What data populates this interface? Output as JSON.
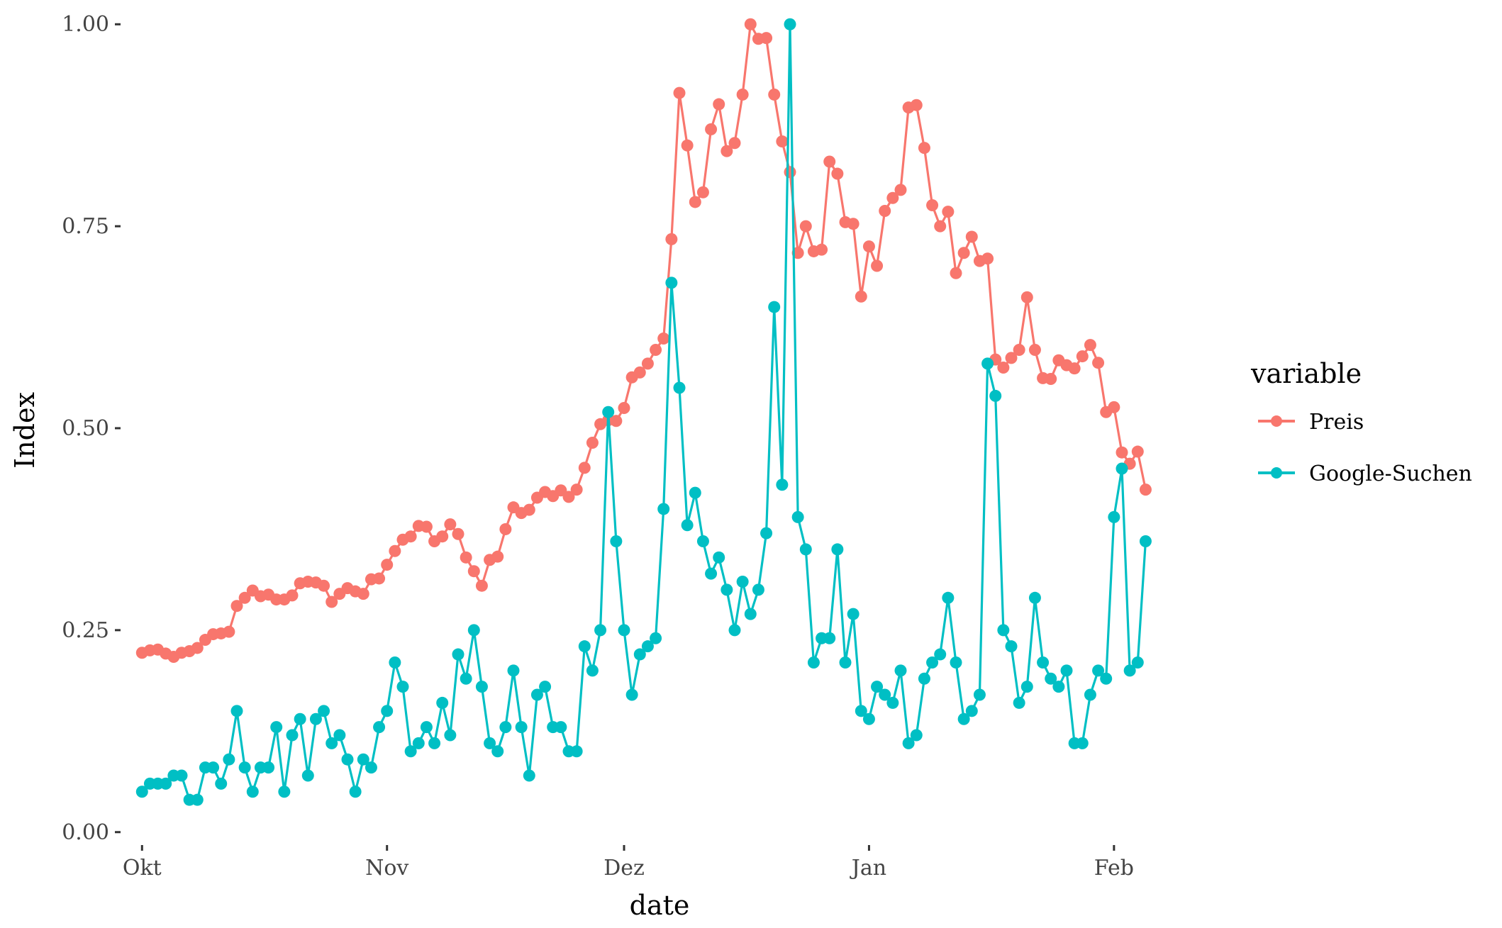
{
  "chart_data": {
    "type": "line",
    "title": "",
    "xlabel": "date",
    "ylabel": "Index",
    "x_axis": {
      "type": "date",
      "domain": [
        "2017-09-29",
        "2018-02-09"
      ],
      "ticks": [
        {
          "date": "2017-10-01",
          "label": "Okt"
        },
        {
          "date": "2017-11-01",
          "label": "Nov"
        },
        {
          "date": "2017-12-01",
          "label": "Dez"
        },
        {
          "date": "2018-01-01",
          "label": "Jan"
        },
        {
          "date": "2018-02-01",
          "label": "Feb"
        }
      ]
    },
    "y_axis": {
      "domain": [
        -0.0125,
        1.0125
      ],
      "ticks": [
        {
          "value": 0.0,
          "label": "0.00"
        },
        {
          "value": 0.25,
          "label": "0.25"
        },
        {
          "value": 0.5,
          "label": "0.50"
        },
        {
          "value": 0.75,
          "label": "0.75"
        },
        {
          "value": 1.0,
          "label": "1.00"
        }
      ]
    },
    "grid": false,
    "legend": {
      "title": "variable",
      "position": "right"
    },
    "x_start": "2017-10-01",
    "x_step_days": 1,
    "series": [
      {
        "name": "Preis",
        "color": "#F8766D",
        "values": [
          0.222,
          0.225,
          0.226,
          0.221,
          0.217,
          0.222,
          0.224,
          0.228,
          0.238,
          0.245,
          0.246,
          0.248,
          0.28,
          0.29,
          0.299,
          0.292,
          0.294,
          0.288,
          0.288,
          0.293,
          0.308,
          0.31,
          0.309,
          0.305,
          0.285,
          0.295,
          0.302,
          0.298,
          0.295,
          0.313,
          0.314,
          0.331,
          0.348,
          0.362,
          0.366,
          0.379,
          0.378,
          0.36,
          0.366,
          0.381,
          0.369,
          0.34,
          0.323,
          0.305,
          0.337,
          0.341,
          0.375,
          0.402,
          0.395,
          0.399,
          0.414,
          0.421,
          0.416,
          0.423,
          0.415,
          0.424,
          0.451,
          0.482,
          0.505,
          0.51,
          0.509,
          0.525,
          0.563,
          0.569,
          0.58,
          0.597,
          0.611,
          0.734,
          0.915,
          0.85,
          0.78,
          0.792,
          0.87,
          0.901,
          0.843,
          0.853,
          0.913,
          1.0,
          0.982,
          0.983,
          0.913,
          0.855,
          0.817,
          0.717,
          0.75,
          0.719,
          0.721,
          0.83,
          0.815,
          0.755,
          0.753,
          0.663,
          0.725,
          0.701,
          0.769,
          0.785,
          0.795,
          0.897,
          0.9,
          0.847,
          0.776,
          0.75,
          0.768,
          0.692,
          0.717,
          0.737,
          0.707,
          0.71,
          0.585,
          0.575,
          0.587,
          0.597,
          0.662,
          0.597,
          0.562,
          0.561,
          0.584,
          0.578,
          0.574,
          0.589,
          0.603,
          0.581,
          0.52,
          0.526,
          0.47,
          0.456,
          0.471,
          0.424
        ]
      },
      {
        "name": "Google-Suchen",
        "color": "#00BFC4",
        "values": [
          0.05,
          0.06,
          0.06,
          0.06,
          0.07,
          0.07,
          0.04,
          0.04,
          0.08,
          0.08,
          0.06,
          0.09,
          0.15,
          0.08,
          0.05,
          0.08,
          0.08,
          0.13,
          0.05,
          0.12,
          0.14,
          0.07,
          0.14,
          0.15,
          0.11,
          0.12,
          0.09,
          0.05,
          0.09,
          0.08,
          0.13,
          0.15,
          0.21,
          0.18,
          0.1,
          0.11,
          0.13,
          0.11,
          0.16,
          0.12,
          0.22,
          0.19,
          0.25,
          0.18,
          0.11,
          0.1,
          0.13,
          0.2,
          0.13,
          0.07,
          0.17,
          0.18,
          0.13,
          0.13,
          0.1,
          0.1,
          0.23,
          0.2,
          0.25,
          0.52,
          0.36,
          0.25,
          0.17,
          0.22,
          0.23,
          0.24,
          0.4,
          0.68,
          0.55,
          0.38,
          0.42,
          0.36,
          0.32,
          0.34,
          0.3,
          0.25,
          0.31,
          0.27,
          0.3,
          0.37,
          0.65,
          0.43,
          1.0,
          0.39,
          0.35,
          0.21,
          0.24,
          0.24,
          0.35,
          0.21,
          0.27,
          0.15,
          0.14,
          0.18,
          0.17,
          0.16,
          0.2,
          0.11,
          0.12,
          0.19,
          0.21,
          0.22,
          0.29,
          0.21,
          0.14,
          0.15,
          0.17,
          0.58,
          0.54,
          0.25,
          0.23,
          0.16,
          0.18,
          0.29,
          0.21,
          0.19,
          0.18,
          0.2,
          0.11,
          0.11,
          0.17,
          0.2,
          0.19,
          0.39,
          0.45,
          0.2,
          0.21,
          0.36
        ]
      }
    ]
  }
}
